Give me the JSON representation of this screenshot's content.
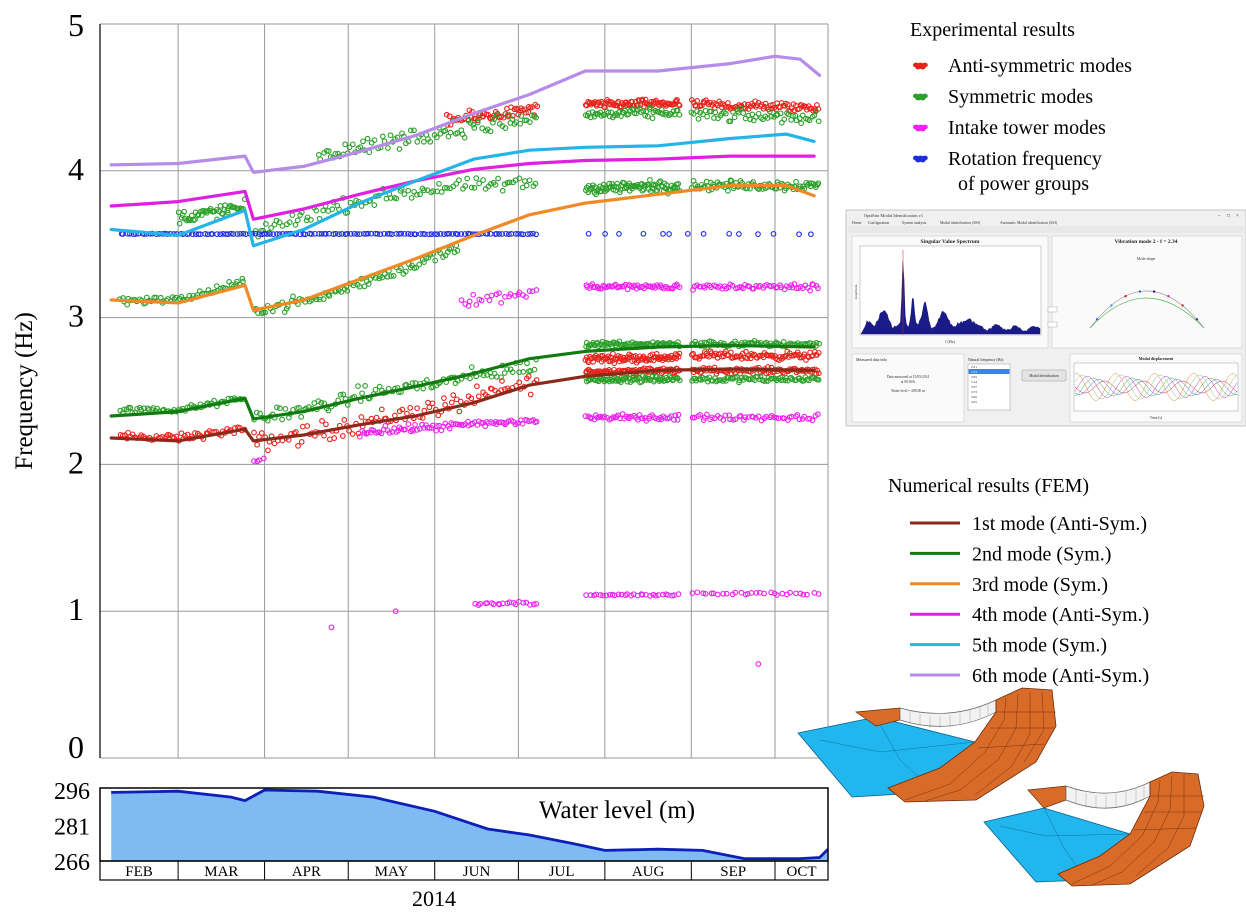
{
  "chart_data": [
    {
      "type": "scatter",
      "ylabel": "Frequency (Hz)",
      "ylim": [
        0,
        5
      ],
      "y_ticks": [
        "0",
        "1",
        "2",
        "3",
        "4",
        "5"
      ],
      "grid": true,
      "xlim": [
        "2014-02-01",
        "2014-10-20"
      ],
      "experimental_title": "Experimental results",
      "experimental_legend": [
        {
          "name": "Anti-symmetric modes",
          "color": "#e8231c"
        },
        {
          "name": "Symmetric modes",
          "color": "#2aa128"
        },
        {
          "name": "Intake tower modes",
          "color": "#ee20ee"
        },
        {
          "name": "Rotation frequency",
          "name2": "of power groups",
          "color": "#1f2de0"
        }
      ],
      "numerical_title": "Numerical results (FEM)",
      "series": [
        {
          "name": "1st mode (Anti-Sym.)",
          "color": "#8b2a1a",
          "x": [
            "2014-02-05",
            "2014-03-01",
            "2014-03-25",
            "2014-03-28",
            "2014-04-15",
            "2014-05-05",
            "2014-05-25",
            "2014-06-15",
            "2014-07-05",
            "2014-07-25",
            "2014-08-20",
            "2014-09-15",
            "2014-10-15"
          ],
          "y": [
            2.18,
            2.16,
            2.24,
            2.16,
            2.2,
            2.27,
            2.33,
            2.42,
            2.54,
            2.6,
            2.64,
            2.65,
            2.64
          ]
        },
        {
          "name": "2nd mode (Sym.)",
          "color": "#117a11",
          "x": [
            "2014-02-05",
            "2014-03-01",
            "2014-03-25",
            "2014-03-28",
            "2014-04-15",
            "2014-05-05",
            "2014-05-25",
            "2014-06-15",
            "2014-07-05",
            "2014-07-25",
            "2014-08-20",
            "2014-09-15",
            "2014-10-15"
          ],
          "y": [
            2.33,
            2.36,
            2.45,
            2.31,
            2.36,
            2.45,
            2.53,
            2.62,
            2.72,
            2.77,
            2.8,
            2.81,
            2.8
          ]
        },
        {
          "name": "3rd mode (Sym.)",
          "color": "#f08a24",
          "x": [
            "2014-02-05",
            "2014-03-01",
            "2014-03-25",
            "2014-03-28",
            "2014-04-15",
            "2014-05-05",
            "2014-05-25",
            "2014-06-15",
            "2014-07-05",
            "2014-07-25",
            "2014-08-20",
            "2014-09-15",
            "2014-10-05",
            "2014-10-15"
          ],
          "y": [
            3.12,
            3.1,
            3.22,
            3.05,
            3.12,
            3.26,
            3.4,
            3.56,
            3.7,
            3.78,
            3.84,
            3.9,
            3.9,
            3.83
          ]
        },
        {
          "name": "4th mode (Anti-Sym.)",
          "color": "#e020e0",
          "x": [
            "2014-02-05",
            "2014-03-01",
            "2014-03-25",
            "2014-03-28",
            "2014-04-15",
            "2014-05-05",
            "2014-05-25",
            "2014-06-15",
            "2014-07-05",
            "2014-07-25",
            "2014-08-20",
            "2014-09-15",
            "2014-10-15"
          ],
          "y": [
            3.76,
            3.79,
            3.86,
            3.67,
            3.74,
            3.84,
            3.93,
            4.01,
            4.05,
            4.07,
            4.08,
            4.1,
            4.1
          ]
        },
        {
          "name": "5th mode (Sym.)",
          "color": "#24b4e8",
          "x": [
            "2014-02-05",
            "2014-03-01",
            "2014-03-25",
            "2014-03-28",
            "2014-04-15",
            "2014-05-05",
            "2014-05-25",
            "2014-06-15",
            "2014-07-05",
            "2014-07-25",
            "2014-08-20",
            "2014-09-15",
            "2014-10-05",
            "2014-10-15"
          ],
          "y": [
            3.6,
            3.56,
            3.73,
            3.49,
            3.6,
            3.78,
            3.93,
            4.08,
            4.14,
            4.16,
            4.17,
            4.22,
            4.25,
            4.2
          ]
        },
        {
          "name": "6th mode (Anti-Sym.)",
          "color": "#b68ce8",
          "x": [
            "2014-02-05",
            "2014-03-01",
            "2014-03-25",
            "2014-03-28",
            "2014-04-15",
            "2014-05-05",
            "2014-05-25",
            "2014-06-15",
            "2014-07-05",
            "2014-07-25",
            "2014-08-20",
            "2014-09-15",
            "2014-10-01",
            "2014-10-10",
            "2014-10-17"
          ],
          "y": [
            4.04,
            4.05,
            4.1,
            3.99,
            4.03,
            4.13,
            4.24,
            4.39,
            4.52,
            4.68,
            4.68,
            4.73,
            4.78,
            4.76,
            4.65
          ]
        }
      ],
      "scatter_clusters": [
        {
          "name": "Anti-symmetric modes",
          "color": "#e8231c",
          "segments": [
            {
              "x": [
                "2014-02-08",
                "2014-03-01",
                "2014-03-25"
              ],
              "y": [
                2.19,
                2.18,
                2.24
              ],
              "spread": 0.04,
              "n": 60
            },
            {
              "x": [
                "2014-03-28",
                "2014-04-15",
                "2014-05-10",
                "2014-06-10",
                "2014-07-08"
              ],
              "y": [
                2.15,
                2.2,
                2.3,
                2.42,
                2.57
              ],
              "spread": 0.1,
              "n": 110
            },
            {
              "x": [
                "2014-07-25",
                "2014-08-28"
              ],
              "y": [
                2.63,
                2.64
              ],
              "spread": 0.03,
              "n": 90
            },
            {
              "x": [
                "2014-07-25",
                "2014-08-28"
              ],
              "y": [
                2.72,
                2.73
              ],
              "spread": 0.04,
              "n": 90
            },
            {
              "x": [
                "2014-09-01",
                "2014-10-17"
              ],
              "y": [
                2.64,
                2.64
              ],
              "spread": 0.03,
              "n": 90
            },
            {
              "x": [
                "2014-09-01",
                "2014-10-17"
              ],
              "y": [
                2.74,
                2.74
              ],
              "spread": 0.04,
              "n": 90
            },
            {
              "x": [
                "2014-06-05",
                "2014-07-08"
              ],
              "y": [
                4.34,
                4.42
              ],
              "spread": 0.06,
              "n": 60
            },
            {
              "x": [
                "2014-07-25",
                "2014-08-28"
              ],
              "y": [
                4.45,
                4.46
              ],
              "spread": 0.04,
              "n": 90
            },
            {
              "x": [
                "2014-09-01",
                "2014-10-17"
              ],
              "y": [
                4.45,
                4.43
              ],
              "spread": 0.05,
              "n": 90
            }
          ]
        },
        {
          "name": "Symmetric modes",
          "color": "#2aa128",
          "segments": [
            {
              "x": [
                "2014-02-08",
                "2014-03-01",
                "2014-03-25"
              ],
              "y": [
                2.37,
                2.37,
                2.45
              ],
              "spread": 0.03,
              "n": 60
            },
            {
              "x": [
                "2014-03-28",
                "2014-04-15",
                "2014-05-10",
                "2014-06-10",
                "2014-07-08"
              ],
              "y": [
                2.32,
                2.37,
                2.49,
                2.58,
                2.68
              ],
              "spread": 0.08,
              "n": 110
            },
            {
              "x": [
                "2014-07-25",
                "2014-08-28"
              ],
              "y": [
                2.58,
                2.58
              ],
              "spread": 0.03,
              "n": 80
            },
            {
              "x": [
                "2014-07-25",
                "2014-08-28"
              ],
              "y": [
                2.82,
                2.82
              ],
              "spread": 0.03,
              "n": 80
            },
            {
              "x": [
                "2014-09-01",
                "2014-10-17"
              ],
              "y": [
                2.58,
                2.58
              ],
              "spread": 0.03,
              "n": 80
            },
            {
              "x": [
                "2014-09-01",
                "2014-10-17"
              ],
              "y": [
                2.82,
                2.82
              ],
              "spread": 0.03,
              "n": 80
            },
            {
              "x": [
                "2014-02-08",
                "2014-03-01",
                "2014-03-25"
              ],
              "y": [
                3.12,
                3.12,
                3.24
              ],
              "spread": 0.04,
              "n": 60
            },
            {
              "x": [
                "2014-03-28",
                "2014-04-20",
                "2014-05-20",
                "2014-06-10"
              ],
              "y": [
                3.05,
                3.13,
                3.33,
                3.48
              ],
              "spread": 0.06,
              "n": 90
            },
            {
              "x": [
                "2014-03-01",
                "2014-03-25"
              ],
              "y": [
                3.68,
                3.75
              ],
              "spread": 0.07,
              "n": 50
            },
            {
              "x": [
                "2014-03-28",
                "2014-04-20",
                "2014-05-20",
                "2014-06-15",
                "2014-07-08"
              ],
              "y": [
                3.58,
                3.72,
                3.85,
                3.9,
                3.91
              ],
              "spread": 0.07,
              "n": 100
            },
            {
              "x": [
                "2014-07-25",
                "2014-08-28"
              ],
              "y": [
                3.88,
                3.9
              ],
              "spread": 0.06,
              "n": 90
            },
            {
              "x": [
                "2014-09-01",
                "2014-10-17"
              ],
              "y": [
                3.9,
                3.9
              ],
              "spread": 0.05,
              "n": 90
            },
            {
              "x": [
                "2014-04-20",
                "2014-05-20",
                "2014-06-15",
                "2014-07-08"
              ],
              "y": [
                4.1,
                4.22,
                4.3,
                4.36
              ],
              "spread": 0.09,
              "n": 90
            },
            {
              "x": [
                "2014-07-25",
                "2014-08-28"
              ],
              "y": [
                4.38,
                4.4
              ],
              "spread": 0.05,
              "n": 60
            },
            {
              "x": [
                "2014-09-01",
                "2014-10-17"
              ],
              "y": [
                4.38,
                4.36
              ],
              "spread": 0.06,
              "n": 60
            }
          ]
        },
        {
          "name": "Intake tower modes",
          "color": "#ee20ee",
          "segments": [
            {
              "x": [
                "2014-05-05",
                "2014-07-08"
              ],
              "y": [
                2.22,
                2.3
              ],
              "spread": 0.04,
              "n": 90
            },
            {
              "x": [
                "2014-07-25",
                "2014-08-28"
              ],
              "y": [
                2.32,
                2.32
              ],
              "spread": 0.03,
              "n": 50
            },
            {
              "x": [
                "2014-09-01",
                "2014-10-17"
              ],
              "y": [
                2.32,
                2.32
              ],
              "spread": 0.03,
              "n": 50
            },
            {
              "x": [
                "2014-06-10",
                "2014-07-08"
              ],
              "y": [
                3.1,
                3.18
              ],
              "spread": 0.06,
              "n": 25
            },
            {
              "x": [
                "2014-07-25",
                "2014-08-28"
              ],
              "y": [
                3.21,
                3.21
              ],
              "spread": 0.03,
              "n": 60
            },
            {
              "x": [
                "2014-09-01",
                "2014-10-17"
              ],
              "y": [
                3.21,
                3.21
              ],
              "spread": 0.03,
              "n": 60
            },
            {
              "x": [
                "2014-06-15",
                "2014-07-08"
              ],
              "y": [
                1.05,
                1.06
              ],
              "spread": 0.02,
              "n": 20
            },
            {
              "x": [
                "2014-07-25",
                "2014-08-28"
              ],
              "y": [
                1.11,
                1.11
              ],
              "spread": 0.015,
              "n": 30
            },
            {
              "x": [
                "2014-09-01",
                "2014-10-17"
              ],
              "y": [
                1.12,
                1.12
              ],
              "spread": 0.015,
              "n": 30
            },
            {
              "x": [
                "2014-03-28",
                "2014-04-01"
              ],
              "y": [
                2.02,
                2.04
              ],
              "spread": 0.01,
              "n": 4
            },
            {
              "x": [
                "2014-04-25",
                "2014-04-25"
              ],
              "y": [
                0.89,
                0.89
              ],
              "spread": 0.0,
              "n": 1
            },
            {
              "x": [
                "2014-05-18",
                "2014-05-18"
              ],
              "y": [
                1.0,
                1.0
              ],
              "spread": 0.0,
              "n": 1
            },
            {
              "x": [
                "2014-09-25",
                "2014-09-25"
              ],
              "y": [
                0.64,
                0.64
              ],
              "spread": 0.0,
              "n": 1
            }
          ]
        },
        {
          "name": "Rotation frequency of power groups",
          "color": "#1f2de0",
          "segments": [
            {
              "x": [
                "2014-02-08",
                "2014-07-08"
              ],
              "y": [
                3.57,
                3.57
              ],
              "spread": 0.004,
              "n": 140
            },
            {
              "x": [
                "2014-07-25",
                "2014-10-17"
              ],
              "y": [
                3.57,
                3.57
              ],
              "spread": 0.004,
              "n": 14
            }
          ]
        }
      ]
    },
    {
      "type": "area",
      "title": "Water level (m)",
      "y_ticks": [
        "296",
        "281",
        "266"
      ],
      "ylim": [
        266,
        296
      ],
      "categories": [
        "FEB",
        "MAR",
        "APR",
        "MAY",
        "JUN",
        "JUL",
        "AUG",
        "SEP",
        "OCT"
      ],
      "x_title": "2014",
      "color": "#7fbaf2",
      "line_color": "#0d1fb8",
      "x": [
        "2014-02-05",
        "2014-03-01",
        "2014-03-20",
        "2014-03-25",
        "2014-04-01",
        "2014-04-20",
        "2014-05-10",
        "2014-06-01",
        "2014-06-20",
        "2014-07-05",
        "2014-07-20",
        "2014-08-01",
        "2014-08-20",
        "2014-09-05",
        "2014-09-20",
        "2014-10-10",
        "2014-10-17",
        "2014-10-20"
      ],
      "y": [
        295,
        295.5,
        293,
        291.5,
        296,
        295.5,
        293,
        287,
        279.5,
        277,
        273.5,
        270.5,
        271,
        270.5,
        267,
        267,
        267.5,
        271
      ]
    }
  ],
  "inset": {
    "window_title": "OptiSim Modal Identification v1",
    "menu": [
      "Home",
      "Configuration",
      "System analysis",
      "Modal identification (SSI)",
      "Automatic Modal identification (SSI)"
    ],
    "svs_title": "Singular Value Spectrum",
    "svs_xlabel": "f (Hz)",
    "svs_ylabel": "Amplitude",
    "mode_title": "Vibration mode 2 - f = 2.34",
    "mode_subtitle": "Mode shape",
    "measured_panel_title": "Measured data info",
    "measured_line1": "Data measured at 15/05/2014",
    "measured_line2": "at 00:00 h",
    "measured_line3": "Water level = 288.00 m",
    "natural_freq_title": "Natural frequency (Hz)",
    "natural_freqs": [
      "2.21",
      "2.34",
      "2.65",
      "3.14",
      "3.57",
      "3.73",
      "3.95",
      "4.25"
    ],
    "button_label": "Modal identification",
    "displacement_title": "Modal displacement",
    "displacement_xlabel": "Time (s)"
  }
}
